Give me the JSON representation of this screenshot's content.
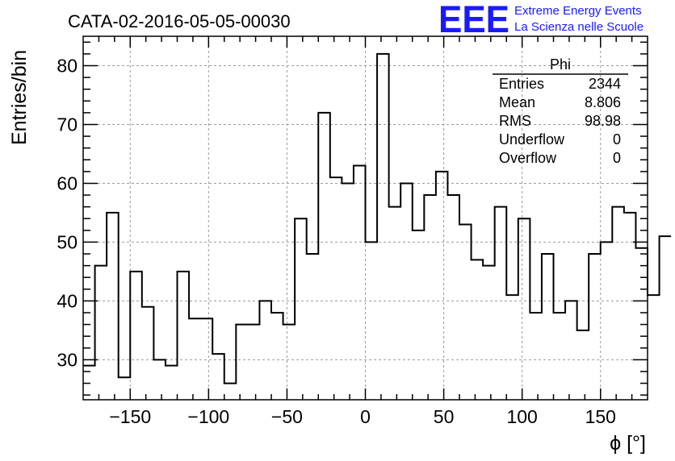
{
  "header": {
    "run_title": "CATA-02-2016-05-05-00030",
    "logo_text": "EEE",
    "org_line1": "Extreme Energy Events",
    "org_line2": "La Scienza nelle Scuole",
    "logo_color": "#1a1aff"
  },
  "stats": {
    "title": "Phi",
    "rows": [
      {
        "label": "Entries",
        "value": "2344"
      },
      {
        "label": "Mean",
        "value": "8.806"
      },
      {
        "label": "RMS",
        "value": "98.98"
      },
      {
        "label": "Underflow",
        "value": "0"
      },
      {
        "label": "Overflow",
        "value": "0"
      }
    ]
  },
  "chart_data": {
    "type": "bar",
    "histogram_style": "step",
    "title": "CATA-02-2016-05-05-00030",
    "xlabel": "ϕ [°]",
    "ylabel": "Entries/bin",
    "xlim": [
      -180,
      180
    ],
    "ylim": [
      23.2,
      85
    ],
    "bin_width": 7.5,
    "x_ticks": [
      -150,
      -100,
      -50,
      0,
      50,
      100,
      150
    ],
    "x_tick_labels": [
      "−150",
      "−100",
      "−50",
      "0",
      "50",
      "100",
      "150"
    ],
    "y_ticks": [
      30,
      40,
      50,
      60,
      70,
      80
    ],
    "y_tick_labels": [
      "30",
      "40",
      "50",
      "60",
      "70",
      "80"
    ],
    "grid": true,
    "values": [
      29,
      46,
      55,
      27,
      45,
      39,
      30,
      29,
      45,
      37,
      37,
      31,
      26,
      36,
      36,
      40,
      38,
      36,
      54,
      48,
      72,
      61,
      60,
      63,
      50,
      82,
      56,
      60,
      52,
      58,
      62,
      58,
      53,
      47,
      46,
      56,
      41,
      54,
      38,
      48,
      38,
      40,
      35,
      48,
      50,
      56,
      55,
      49,
      41,
      51
    ]
  }
}
